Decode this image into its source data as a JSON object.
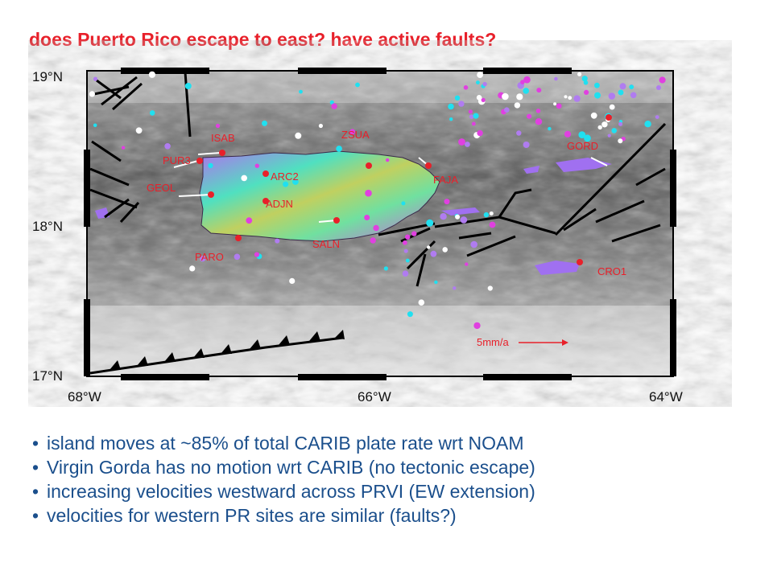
{
  "title": "does Puerto Rico escape to east? have active faults?",
  "map": {
    "lat_labels": [
      "19°N",
      "18°N",
      "17°N"
    ],
    "lon_labels": [
      "68°W",
      "66°W",
      "64°W"
    ],
    "stations": [
      "ISAB",
      "ZSUA",
      "PUR3",
      "ARC2",
      "GEOL",
      "ADJN",
      "FAJA",
      "GORD",
      "SALN",
      "PARO",
      "CRO1"
    ],
    "scale_label": "5mm/a",
    "colors": {
      "vector": "#e8202a",
      "fault": "#000000",
      "seismic_magenta": "#e040e0",
      "seismic_cyan": "#20e0f0"
    }
  },
  "bullets": [
    "island moves at ~85% of total CARIB plate rate wrt NOAM",
    "Virgin Gorda has no motion wrt CARIB (no tectonic escape)",
    "increasing velocities westward across PRVI (EW extension)",
    "velocities for western PR sites are similar (faults?)"
  ]
}
